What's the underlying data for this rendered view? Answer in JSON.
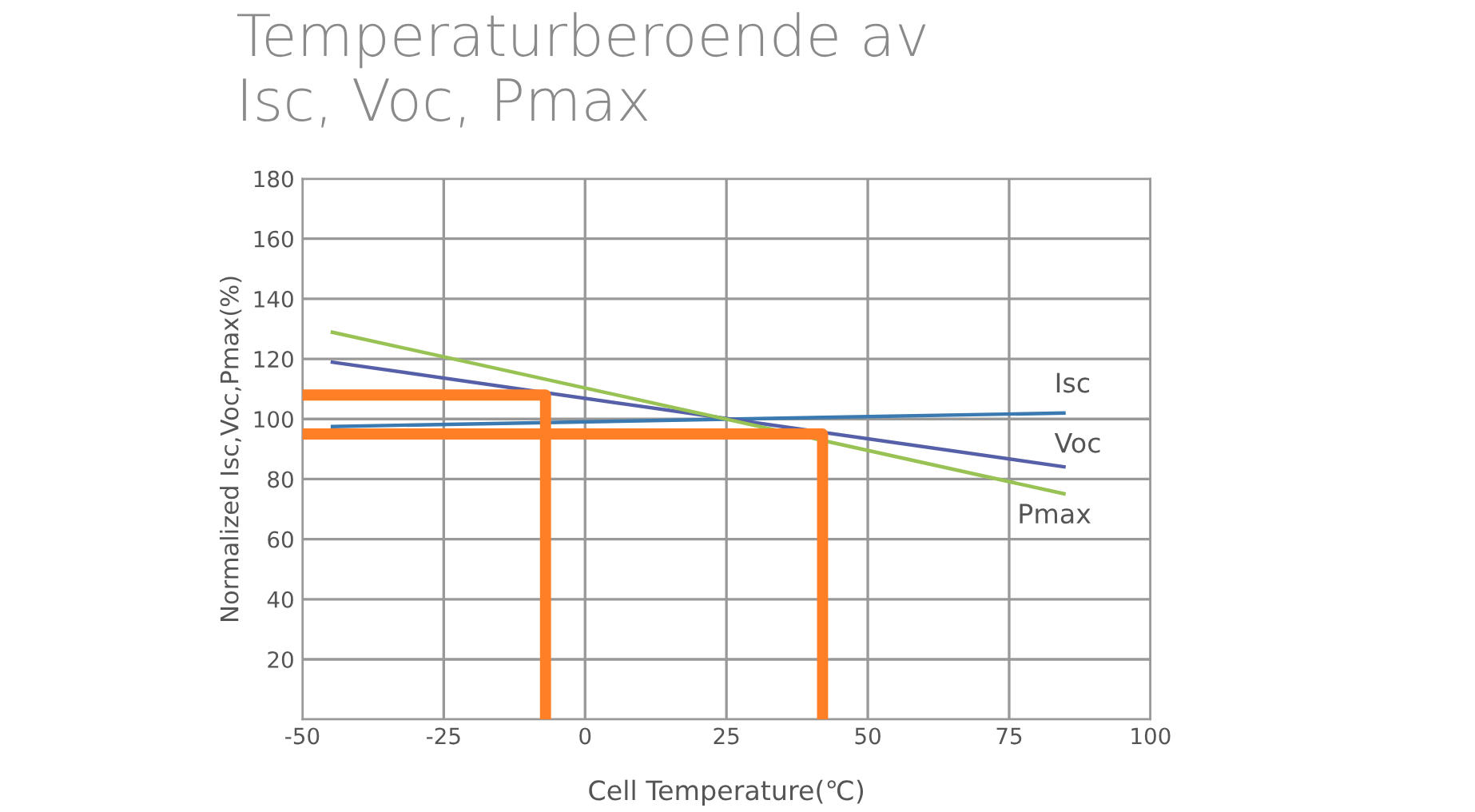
{
  "chart_data": {
    "type": "line",
    "title": "Temperaturberoende av\nIsc, Voc, Pmax",
    "xlabel": "Cell Temperature(℃)",
    "ylabel": "Normalized Isc,Voc,Pmax(%)",
    "xlim": [
      -50,
      100
    ],
    "xticks": [
      -50,
      -25,
      0,
      25,
      50,
      75,
      100
    ],
    "ylim": [
      0,
      180
    ],
    "yticks": [
      {
        "value": 0,
        "label": null
      },
      20,
      40,
      60,
      80,
      100,
      120,
      140,
      160,
      180
    ],
    "grid": true,
    "legend": false,
    "marker": "none",
    "line_style": "solid",
    "series": [
      {
        "name": "Isc",
        "color": "#3a7ab0",
        "x": [
          -45,
          85
        ],
        "values": [
          97.5,
          102
        ]
      },
      {
        "name": "Voc",
        "color": "#5560a8",
        "x": [
          -45,
          85
        ],
        "values": [
          119,
          84
        ]
      },
      {
        "name": "Pmax",
        "color": "#99c255",
        "x": [
          -45,
          85
        ],
        "values": [
          129,
          75
        ]
      },
      {
        "color": "#ff7f27",
        "x": [
          -50,
          -7,
          -7
        ],
        "values": [
          108,
          108,
          0
        ]
      },
      {
        "color": "#ff7f27",
        "x": [
          -50,
          42,
          42
        ],
        "values": [
          95,
          95,
          0
        ]
      }
    ]
  }
}
